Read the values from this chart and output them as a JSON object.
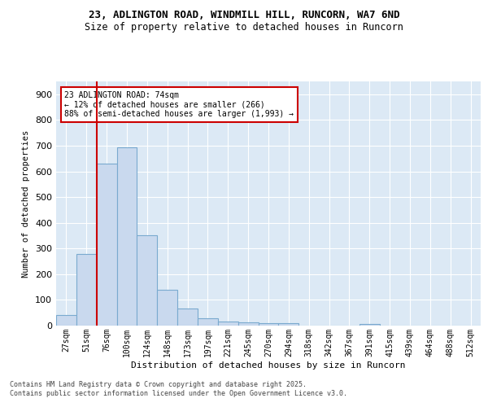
{
  "title1": "23, ADLINGTON ROAD, WINDMILL HILL, RUNCORN, WA7 6ND",
  "title2": "Size of property relative to detached houses in Runcorn",
  "xlabel": "Distribution of detached houses by size in Runcorn",
  "ylabel": "Number of detached properties",
  "categories": [
    "27sqm",
    "51sqm",
    "76sqm",
    "100sqm",
    "124sqm",
    "148sqm",
    "173sqm",
    "197sqm",
    "221sqm",
    "245sqm",
    "270sqm",
    "294sqm",
    "318sqm",
    "342sqm",
    "367sqm",
    "391sqm",
    "415sqm",
    "439sqm",
    "464sqm",
    "488sqm",
    "512sqm"
  ],
  "values": [
    40,
    280,
    630,
    695,
    350,
    140,
    65,
    28,
    15,
    12,
    10,
    8,
    0,
    0,
    0,
    5,
    0,
    0,
    0,
    0,
    0
  ],
  "bar_color": "#c9d9ee",
  "bar_edge_color": "#7aaacf",
  "bar_edge_width": 0.8,
  "vline_color": "#cc0000",
  "vline_linewidth": 1.5,
  "vline_pos": 1.5,
  "annotation_text": "23 ADLINGTON ROAD: 74sqm\n← 12% of detached houses are smaller (266)\n88% of semi-detached houses are larger (1,993) →",
  "annotation_box_color": "#ffffff",
  "annotation_box_edge_color": "#cc0000",
  "ylim": [
    0,
    950
  ],
  "yticks": [
    0,
    100,
    200,
    300,
    400,
    500,
    600,
    700,
    800,
    900
  ],
  "background_color": "#dce9f5",
  "grid_color": "#ffffff",
  "fig_background": "#ffffff",
  "footer1": "Contains HM Land Registry data © Crown copyright and database right 2025.",
  "footer2": "Contains public sector information licensed under the Open Government Licence v3.0."
}
